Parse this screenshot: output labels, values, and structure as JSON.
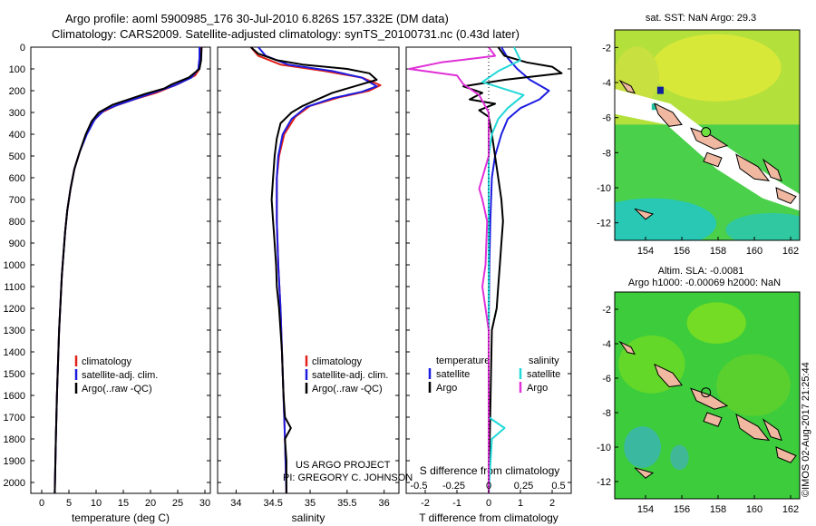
{
  "header": {
    "line1": "Argo profile: aoml 5900985_176 30-Jul-2010 6.826S 157.332E (DM data)",
    "line2": "Climatology: CARS2009. Satellite-adjusted climatology: synTS_20100731.nc (0.43d later)"
  },
  "colors": {
    "climatology": "#e0201a",
    "satellite": "#1c1ce0",
    "argo": "#000000",
    "sat_salinity": "#22d8d8",
    "argo_salinity": "#e030d8",
    "land": "#f0b8a0"
  },
  "chart_data": [
    {
      "type": "line",
      "name": "temperature-profile",
      "xlabel": "temperature (deg C)",
      "ylabel": "",
      "xlim": [
        -2,
        31
      ],
      "ylim": [
        2050,
        0
      ],
      "xticks": [
        "0",
        "5",
        "10",
        "15",
        "20",
        "25",
        "30"
      ],
      "yticks": [
        "0",
        "100",
        "200",
        "300",
        "400",
        "500",
        "600",
        "700",
        "800",
        "900",
        "1000",
        "1100",
        "1200",
        "1300",
        "1400",
        "1500",
        "1600",
        "1700",
        "1800",
        "1900",
        "2000"
      ],
      "legend": [
        "climatology",
        "satellite-adj. clim.",
        "Argo(..raw -QC)"
      ],
      "series": [
        {
          "name": "climatology",
          "points": [
            [
              29.2,
              0
            ],
            [
              29.2,
              50
            ],
            [
              29.0,
              100
            ],
            [
              28.2,
              130
            ],
            [
              25,
              170
            ],
            [
              21,
              210
            ],
            [
              17,
              240
            ],
            [
              13.5,
              270
            ],
            [
              11,
              300
            ],
            [
              9.5,
              340
            ],
            [
              8.2,
              400
            ],
            [
              7.0,
              480
            ],
            [
              6.0,
              560
            ],
            [
              5.3,
              650
            ],
            [
              4.7,
              750
            ],
            [
              4.3,
              850
            ],
            [
              4.0,
              950
            ],
            [
              3.7,
              1050
            ],
            [
              3.5,
              1150
            ],
            [
              3.2,
              1300
            ],
            [
              3.0,
              1450
            ],
            [
              2.8,
              1600
            ],
            [
              2.6,
              1800
            ],
            [
              2.4,
              2050
            ]
          ]
        },
        {
          "name": "satellite",
          "points": [
            [
              29.0,
              0
            ],
            [
              29.0,
              50
            ],
            [
              28.8,
              100
            ],
            [
              27.5,
              140
            ],
            [
              24.5,
              175
            ],
            [
              21,
              205
            ],
            [
              17.5,
              235
            ],
            [
              14,
              265
            ],
            [
              11.5,
              290
            ],
            [
              9.8,
              330
            ],
            [
              8.3,
              400
            ],
            [
              7.0,
              480
            ],
            [
              6.0,
              560
            ],
            [
              5.3,
              650
            ],
            [
              4.7,
              750
            ],
            [
              4.3,
              850
            ],
            [
              4.0,
              950
            ],
            [
              3.7,
              1050
            ],
            [
              3.5,
              1150
            ],
            [
              3.2,
              1300
            ],
            [
              3.0,
              1450
            ],
            [
              2.8,
              1600
            ],
            [
              2.6,
              1800
            ],
            [
              2.4,
              2050
            ]
          ]
        },
        {
          "name": "argo",
          "points": [
            [
              29.4,
              0
            ],
            [
              29.3,
              60
            ],
            [
              29.0,
              100
            ],
            [
              27,
              140
            ],
            [
              24,
              170
            ],
            [
              22.5,
              190
            ],
            [
              19,
              215
            ],
            [
              16,
              240
            ],
            [
              13,
              265
            ],
            [
              10.5,
              300
            ],
            [
              9.2,
              340
            ],
            [
              8.1,
              400
            ],
            [
              7.0,
              480
            ],
            [
              6.0,
              560
            ],
            [
              5.3,
              650
            ],
            [
              4.7,
              750
            ],
            [
              4.3,
              850
            ],
            [
              4.0,
              950
            ],
            [
              3.7,
              1050
            ],
            [
              3.5,
              1150
            ],
            [
              3.2,
              1300
            ],
            [
              3.0,
              1450
            ],
            [
              2.8,
              1600
            ],
            [
              2.6,
              1800
            ],
            [
              2.4,
              2050
            ]
          ]
        }
      ]
    },
    {
      "type": "line",
      "name": "salinity-profile",
      "xlabel": "salinity",
      "xlim": [
        33.75,
        36.2
      ],
      "ylim": [
        2050,
        0
      ],
      "xticks": [
        "34",
        "34.5",
        "35",
        "35.5",
        "36"
      ],
      "legend": [
        "climatology",
        "satellite-adj. clim.",
        "Argo(..raw -QC)"
      ],
      "series": [
        {
          "name": "climatology",
          "points": [
            [
              34.2,
              0
            ],
            [
              34.3,
              40
            ],
            [
              34.6,
              80
            ],
            [
              35.2,
              110
            ],
            [
              35.7,
              140
            ],
            [
              35.95,
              175
            ],
            [
              35.8,
              200
            ],
            [
              35.4,
              230
            ],
            [
              35.0,
              270
            ],
            [
              34.8,
              320
            ],
            [
              34.65,
              400
            ],
            [
              34.58,
              500
            ],
            [
              34.55,
              600
            ],
            [
              34.55,
              800
            ],
            [
              34.57,
              1000
            ],
            [
              34.6,
              1200
            ],
            [
              34.62,
              1400
            ],
            [
              34.64,
              1600
            ],
            [
              34.66,
              1800
            ],
            [
              34.68,
              2050
            ]
          ]
        },
        {
          "name": "satellite",
          "points": [
            [
              34.3,
              0
            ],
            [
              34.4,
              40
            ],
            [
              34.7,
              80
            ],
            [
              35.3,
              110
            ],
            [
              35.7,
              140
            ],
            [
              35.9,
              180
            ],
            [
              35.7,
              205
            ],
            [
              35.3,
              235
            ],
            [
              34.95,
              275
            ],
            [
              34.75,
              330
            ],
            [
              34.63,
              400
            ],
            [
              34.57,
              500
            ],
            [
              34.55,
              600
            ],
            [
              34.55,
              800
            ],
            [
              34.57,
              1000
            ],
            [
              34.6,
              1200
            ],
            [
              34.62,
              1400
            ],
            [
              34.64,
              1600
            ],
            [
              34.66,
              1800
            ],
            [
              34.68,
              2050
            ]
          ]
        },
        {
          "name": "argo",
          "points": [
            [
              34.2,
              0
            ],
            [
              34.3,
              30
            ],
            [
              34.55,
              60
            ],
            [
              34.9,
              80
            ],
            [
              35.5,
              100
            ],
            [
              35.8,
              120
            ],
            [
              35.9,
              150
            ],
            [
              35.6,
              180
            ],
            [
              35.3,
              210
            ],
            [
              35.1,
              240
            ],
            [
              34.9,
              270
            ],
            [
              34.75,
              300
            ],
            [
              34.6,
              350
            ],
            [
              34.55,
              420
            ],
            [
              34.52,
              500
            ],
            [
              34.5,
              600
            ],
            [
              34.48,
              700
            ],
            [
              34.5,
              800
            ],
            [
              34.52,
              900
            ],
            [
              34.54,
              1000
            ],
            [
              34.55,
              1100
            ],
            [
              34.58,
              1200
            ],
            [
              34.6,
              1300
            ],
            [
              34.62,
              1400
            ],
            [
              34.63,
              1500
            ],
            [
              34.64,
              1600
            ],
            [
              34.66,
              1700
            ],
            [
              34.74,
              1750
            ],
            [
              34.66,
              1800
            ],
            [
              34.68,
              1900
            ],
            [
              34.68,
              2050
            ]
          ]
        }
      ],
      "annotations": [
        "US ARGO PROJECT",
        "PI: GREGORY C. JOHNSON"
      ]
    },
    {
      "type": "line",
      "name": "difference-profile",
      "xlabel": "T difference from climatology",
      "xlabel_top": "S difference from climatology",
      "xlim_T": [
        -2.6,
        2.6
      ],
      "xticks_T": [
        "-2",
        "-1",
        "0",
        "1",
        "2"
      ],
      "xticks_S": [
        "-0.5",
        "-0.25",
        "0",
        "0.25",
        "0.5"
      ],
      "legend": {
        "temperature": "temperature",
        "salinity": "salinity",
        "items": [
          "satellite",
          "Argo",
          "satellite",
          "Argo"
        ]
      },
      "series": [
        {
          "name": "T satellite",
          "points": [
            [
              0.4,
              0
            ],
            [
              0.6,
              50
            ],
            [
              0.9,
              100
            ],
            [
              1.3,
              150
            ],
            [
              1.9,
              200
            ],
            [
              1.6,
              240
            ],
            [
              1.0,
              280
            ],
            [
              0.6,
              330
            ],
            [
              0.4,
              400
            ],
            [
              0.2,
              500
            ],
            [
              0.1,
              600
            ],
            [
              0.05,
              800
            ],
            [
              0.02,
              1000
            ],
            [
              0.0,
              1300
            ],
            [
              0.0,
              2050
            ]
          ]
        },
        {
          "name": "T argo",
          "points": [
            [
              0.3,
              0
            ],
            [
              0.5,
              40
            ],
            [
              1.2,
              70
            ],
            [
              2.0,
              90
            ],
            [
              2.3,
              120
            ],
            [
              0.5,
              150
            ],
            [
              -0.8,
              180
            ],
            [
              -0.2,
              210
            ],
            [
              -0.6,
              240
            ],
            [
              0.2,
              260
            ],
            [
              -0.3,
              290
            ],
            [
              0.0,
              320
            ],
            [
              0.1,
              400
            ],
            [
              0.2,
              500
            ],
            [
              0.3,
              600
            ],
            [
              0.4,
              700
            ],
            [
              0.45,
              800
            ],
            [
              0.4,
              900
            ],
            [
              0.35,
              1000
            ],
            [
              0.3,
              1100
            ],
            [
              0.25,
              1200
            ],
            [
              0.1,
              1300
            ],
            [
              0.0,
              2050
            ]
          ]
        },
        {
          "name": "S satellite",
          "points": [
            [
              0.8,
              0
            ],
            [
              1.0,
              60
            ],
            [
              0.3,
              110
            ],
            [
              -0.2,
              160
            ],
            [
              1.1,
              220
            ],
            [
              0.6,
              280
            ],
            [
              0.3,
              330
            ],
            [
              0.1,
              400
            ],
            [
              0.0,
              500
            ],
            [
              0.0,
              1700
            ],
            [
              0.5,
              1750
            ],
            [
              0.1,
              1800
            ],
            [
              0.0,
              2050
            ]
          ]
        },
        {
          "name": "S argo",
          "points": [
            [
              0.0,
              0
            ],
            [
              0.2,
              40
            ],
            [
              -1.5,
              70
            ],
            [
              -2.5,
              100
            ],
            [
              -1.0,
              130
            ],
            [
              -0.8,
              170
            ],
            [
              -0.3,
              220
            ],
            [
              0.0,
              300
            ],
            [
              0.0,
              500
            ],
            [
              -0.2,
              600
            ],
            [
              -0.3,
              650
            ],
            [
              -0.2,
              700
            ],
            [
              -0.05,
              800
            ],
            [
              -0.1,
              1000
            ],
            [
              -0.2,
              1100
            ],
            [
              -0.1,
              1200
            ],
            [
              0.0,
              1300
            ],
            [
              0.0,
              2050
            ]
          ]
        }
      ]
    },
    {
      "type": "heatmap",
      "name": "sst-map",
      "title": "sat. SST: NaN Argo: 29.3",
      "xticks": [
        "154",
        "156",
        "158",
        "160",
        "162"
      ],
      "yticks": [
        "-2",
        "-4",
        "-6",
        "-8",
        "-10",
        "-12"
      ],
      "xlim": [
        152.3,
        162.5
      ],
      "ylim": [
        -13,
        -1
      ]
    },
    {
      "type": "heatmap",
      "name": "altimetry-map",
      "title_line1": "Altim. SLA: -0.0081",
      "title_line2": "Argo h1000: -0.00069 h2000: NaN",
      "xticks": [
        "154",
        "156",
        "158",
        "160",
        "162"
      ],
      "yticks": [
        "-2",
        "-4",
        "-6",
        "-8",
        "-10",
        "-12"
      ],
      "xlim": [
        152.3,
        162.5
      ],
      "ylim": [
        -13,
        -1
      ]
    }
  ],
  "float_position": {
    "lon": 157.332,
    "lat": -6.826
  },
  "credit": "©IMOS 02-Aug-2017 21:25:44"
}
